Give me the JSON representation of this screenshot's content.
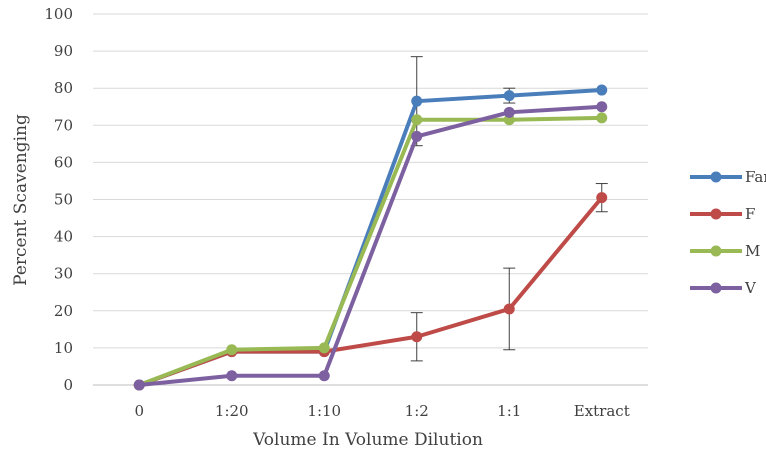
{
  "chart_data": {
    "type": "line",
    "title": "",
    "xlabel": "Volume In Volume Dilution",
    "ylabel": "Percent Scavenging",
    "categories": [
      "0",
      "1:20",
      "1:10",
      "1:2",
      "1:1",
      "Extract"
    ],
    "ylim": [
      0,
      100
    ],
    "yticks": [
      0,
      10,
      20,
      30,
      40,
      50,
      60,
      70,
      80,
      90,
      100
    ],
    "grid": true,
    "legend_position": "right",
    "series": [
      {
        "name": "Far",
        "color": "#4a7ebb",
        "values": [
          0,
          9,
          9,
          76.5,
          78,
          79.5
        ],
        "errors": [
          null,
          null,
          null,
          12,
          2,
          null
        ]
      },
      {
        "name": "F",
        "color": "#be4b48",
        "values": [
          0,
          9,
          9,
          13,
          20.5,
          50.5
        ],
        "errors": [
          null,
          null,
          null,
          6.5,
          11,
          3.8
        ]
      },
      {
        "name": "M",
        "color": "#98b954",
        "values": [
          0,
          9.5,
          10,
          71.5,
          71.5,
          72
        ],
        "errors": [
          null,
          null,
          null,
          null,
          null,
          null
        ]
      },
      {
        "name": "V",
        "color": "#7d60a0",
        "values": [
          0,
          2.5,
          2.5,
          67,
          73.5,
          75
        ],
        "errors": [
          null,
          null,
          null,
          null,
          null,
          null
        ]
      }
    ]
  }
}
